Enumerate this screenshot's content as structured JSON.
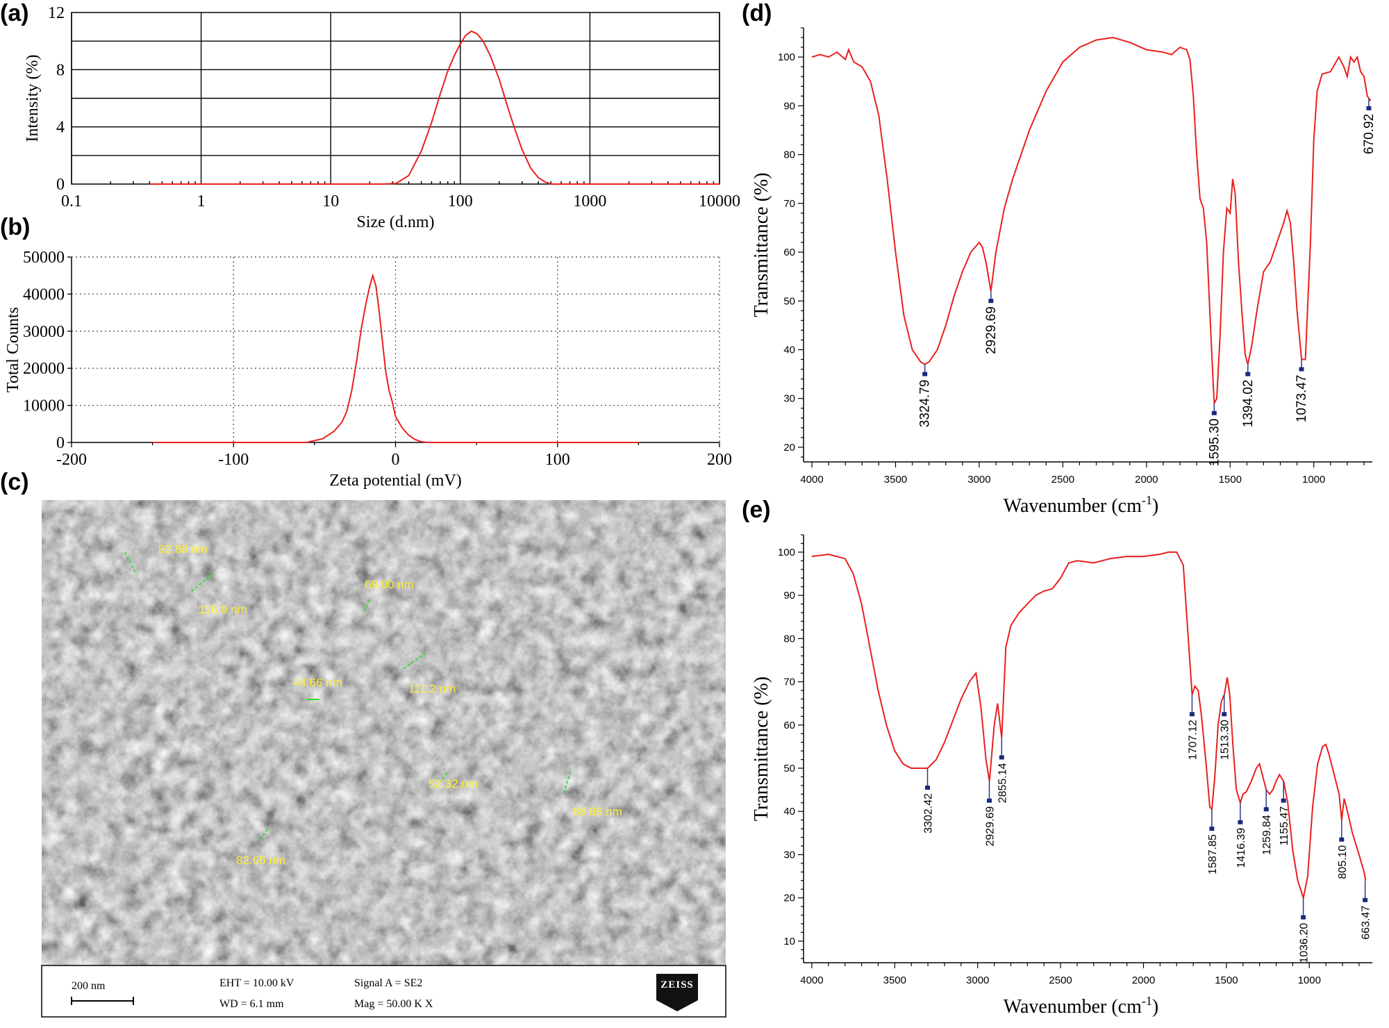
{
  "panels": {
    "a": "(a)",
    "b": "(b)",
    "c": "(c)",
    "d": "(d)",
    "e": "(e)"
  },
  "chart_data": [
    {
      "id": "a",
      "type": "line",
      "xlabel": "Size (d.nm)",
      "ylabel": "Intensity (%)",
      "xscale": "log",
      "xlim": [
        0.1,
        10000
      ],
      "ylim": [
        0,
        12
      ],
      "xticks": [
        0.1,
        1,
        10,
        100,
        1000,
        10000
      ],
      "xtick_labels": [
        "0.1",
        "1",
        "10",
        "100",
        "1000",
        "10000"
      ],
      "yticks": [
        0,
        4,
        8,
        12
      ],
      "ytick_labels": [
        "0",
        "4",
        "8",
        "12"
      ],
      "grid": true,
      "color": "#e8201e",
      "x": [
        0.4,
        10,
        25,
        32,
        40,
        50,
        60,
        70,
        80,
        90,
        100,
        110,
        122,
        135,
        150,
        170,
        200,
        230,
        260,
        300,
        350,
        400,
        450,
        500,
        10000
      ],
      "y": [
        0,
        0,
        0,
        0.05,
        0.6,
        2.3,
        4.3,
        6.3,
        7.9,
        9.0,
        9.8,
        10.4,
        10.7,
        10.5,
        10.0,
        9.0,
        7.3,
        5.5,
        4.0,
        2.4,
        1.1,
        0.45,
        0.15,
        0,
        0
      ]
    },
    {
      "id": "b",
      "type": "line",
      "xlabel": "Zeta potential (mV)",
      "ylabel": "Total Counts",
      "xlim": [
        -200,
        200
      ],
      "ylim": [
        0,
        50000
      ],
      "xticks": [
        -200,
        -100,
        0,
        100,
        200
      ],
      "xtick_labels": [
        "-200",
        "-100",
        "0",
        "100",
        "200"
      ],
      "yticks": [
        0,
        10000,
        20000,
        30000,
        40000,
        50000
      ],
      "ytick_labels": [
        "0",
        "10000",
        "20000",
        "30000",
        "40000",
        "50000"
      ],
      "grid": "dotted",
      "color": "#e8201e",
      "x": [
        -150,
        -55,
        -45,
        -38,
        -33,
        -30,
        -27,
        -24,
        -21,
        -18,
        -16,
        -15,
        -14,
        -12,
        -10,
        -8,
        -6,
        -4,
        -2,
        0,
        4,
        8,
        12,
        16,
        20,
        25,
        150
      ],
      "y": [
        0,
        0,
        1000,
        3000,
        5500,
        8500,
        14000,
        22000,
        31000,
        38000,
        42000,
        43500,
        45000,
        42000,
        35000,
        27000,
        19000,
        14000,
        11000,
        7000,
        4000,
        2000,
        800,
        200,
        0,
        0,
        0
      ]
    },
    {
      "id": "d",
      "type": "line",
      "xlabel": "Wavenumber (cm",
      "xlabel_sup": "-1",
      "xlabel_end": ")",
      "ylabel": "Transmittance (%)",
      "xlim": [
        4050,
        650
      ],
      "ylim": [
        17,
        106
      ],
      "xticks": [
        4000,
        3500,
        3000,
        2500,
        2000,
        1500,
        1000
      ],
      "xtick_labels": [
        "4000",
        "3500",
        "3000",
        "2500",
        "2000",
        "1500",
        "1000"
      ],
      "yticks": [
        20,
        30,
        40,
        50,
        60,
        70,
        80,
        90,
        100
      ],
      "ytick_labels": [
        "20",
        "30",
        "40",
        "50",
        "60",
        "70",
        "80",
        "90",
        "100"
      ],
      "color": "#e8201e",
      "x": [
        4000,
        3950,
        3900,
        3850,
        3800,
        3780,
        3750,
        3700,
        3650,
        3600,
        3550,
        3500,
        3450,
        3400,
        3350,
        3325,
        3300,
        3250,
        3200,
        3150,
        3100,
        3050,
        3000,
        2980,
        2960,
        2930,
        2900,
        2850,
        2800,
        2700,
        2600,
        2500,
        2400,
        2300,
        2200,
        2100,
        2000,
        1900,
        1850,
        1800,
        1760,
        1740,
        1720,
        1700,
        1680,
        1660,
        1640,
        1620,
        1600,
        1595,
        1580,
        1560,
        1540,
        1520,
        1500,
        1485,
        1470,
        1450,
        1430,
        1410,
        1394,
        1370,
        1340,
        1300,
        1260,
        1220,
        1180,
        1160,
        1140,
        1120,
        1100,
        1073,
        1050,
        1020,
        1000,
        980,
        950,
        900,
        850,
        820,
        800,
        780,
        760,
        740,
        720,
        700,
        680,
        660
      ],
      "y": [
        100,
        100.5,
        100,
        101,
        99.5,
        101.5,
        99,
        98,
        95,
        88,
        75,
        60,
        47,
        40,
        37.5,
        37,
        37.5,
        40,
        45,
        51,
        56,
        60,
        62,
        61,
        58,
        52,
        60,
        69,
        75,
        85,
        93,
        99,
        102,
        103.5,
        104,
        103,
        101.5,
        101,
        100.5,
        102,
        101.5,
        99.5,
        92,
        80,
        71,
        69,
        62,
        47,
        32,
        29,
        30,
        43,
        60,
        69,
        68,
        75,
        72,
        58,
        48,
        39,
        37,
        41,
        48,
        56,
        58,
        62,
        66,
        68.5,
        66,
        58,
        48,
        38,
        38,
        62,
        83,
        93,
        96.5,
        97,
        100,
        98,
        96,
        100,
        99,
        100,
        97,
        96,
        92,
        91
      ],
      "peaks": [
        {
          "label": "3324.79",
          "x": 3324.79,
          "y": 37
        },
        {
          "label": "2929.69",
          "x": 2929.69,
          "y": 52
        },
        {
          "label": "1595.30",
          "x": 1595.3,
          "y": 29
        },
        {
          "label": "1394.02",
          "x": 1394.02,
          "y": 37
        },
        {
          "label": "1073.47",
          "x": 1073.47,
          "y": 38
        },
        {
          "label": "670.92",
          "x": 670.92,
          "y": 91.5
        }
      ]
    },
    {
      "id": "e",
      "type": "line",
      "xlabel": "Wavenumber (cm",
      "xlabel_sup": "-1",
      "xlabel_end": ")",
      "ylabel": "Transmittance (%)",
      "xlim": [
        4050,
        620
      ],
      "ylim": [
        5,
        104
      ],
      "xticks": [
        4000,
        3500,
        3000,
        2500,
        2000,
        1500,
        1000
      ],
      "xtick_labels": [
        "4000",
        "3500",
        "3000",
        "2500",
        "2000",
        "1500",
        "1000"
      ],
      "yticks": [
        10,
        20,
        30,
        40,
        50,
        60,
        70,
        80,
        90,
        100
      ],
      "ytick_labels": [
        "10",
        "20",
        "30",
        "40",
        "50",
        "60",
        "70",
        "80",
        "90",
        "100"
      ],
      "color": "#e8201e",
      "x": [
        4000,
        3900,
        3800,
        3750,
        3700,
        3650,
        3600,
        3550,
        3500,
        3450,
        3400,
        3350,
        3302,
        3250,
        3200,
        3150,
        3100,
        3050,
        3010,
        2980,
        2950,
        2929,
        2900,
        2880,
        2855,
        2830,
        2800,
        2750,
        2700,
        2650,
        2600,
        2550,
        2500,
        2450,
        2400,
        2300,
        2200,
        2100,
        2000,
        1900,
        1850,
        1800,
        1760,
        1730,
        1707,
        1690,
        1670,
        1650,
        1620,
        1600,
        1588,
        1570,
        1550,
        1530,
        1513,
        1495,
        1480,
        1460,
        1440,
        1416,
        1400,
        1380,
        1350,
        1320,
        1300,
        1280,
        1260,
        1240,
        1220,
        1200,
        1180,
        1155,
        1130,
        1100,
        1070,
        1036,
        1010,
        980,
        950,
        920,
        900,
        880,
        860,
        840,
        820,
        805,
        790,
        770,
        740,
        700,
        670,
        660
      ],
      "y": [
        99,
        99.5,
        98.5,
        95,
        88,
        78,
        68,
        60,
        54,
        51,
        50,
        50,
        50,
        52,
        56,
        61,
        66,
        70,
        72,
        64,
        52,
        47,
        60,
        65,
        57,
        78,
        83,
        86,
        88,
        90,
        91,
        91.5,
        94,
        97.5,
        98,
        97.5,
        98.5,
        99,
        99,
        99.5,
        100,
        100,
        97,
        80,
        67,
        69,
        68,
        62,
        50,
        41,
        40.5,
        48,
        60,
        65.5,
        67,
        71,
        67,
        55,
        45,
        42,
        44,
        44.5,
        47,
        50,
        51,
        48,
        45,
        44,
        45,
        47,
        48.5,
        47,
        42,
        31,
        24,
        20,
        25,
        41,
        51,
        55,
        55.5,
        53,
        50,
        47,
        44,
        38,
        43,
        40,
        35,
        30,
        26,
        24
      ],
      "peaks": [
        {
          "label": "3302.42",
          "x": 3302.42,
          "y": 50
        },
        {
          "label": "2929.69",
          "x": 2929.69,
          "y": 47
        },
        {
          "label": "2855.14",
          "x": 2855.14,
          "y": 57
        },
        {
          "label": "1707.12",
          "x": 1707.12,
          "y": 67
        },
        {
          "label": "1587.85",
          "x": 1587.85,
          "y": 40.5
        },
        {
          "label": "1513.30",
          "x": 1513.3,
          "y": 67
        },
        {
          "label": "1416.39",
          "x": 1416.39,
          "y": 42
        },
        {
          "label": "1259.84",
          "x": 1259.84,
          "y": 45
        },
        {
          "label": "1155.47",
          "x": 1155.47,
          "y": 47
        },
        {
          "label": "1036.20",
          "x": 1036.2,
          "y": 20
        },
        {
          "label": "805.10",
          "x": 805.1,
          "y": 38
        },
        {
          "label": "663.47",
          "x": 663.47,
          "y": 24
        }
      ]
    }
  ],
  "sem": {
    "measurements": [
      "92.88 nm",
      "116.9 nm",
      "69.00 nm",
      "111.2 nm",
      "44.66 nm",
      "52.32 nm",
      "86.86 nm",
      "82.65 nm"
    ],
    "scale_bar": "200 nm",
    "eht": "EHT = 10.00 kV",
    "wd": "WD = 6.1 mm",
    "signal": "Signal A = SE2",
    "mag": "Mag =   50.00 K X",
    "logo": "ZEISS"
  },
  "colors": {
    "curve": "#e8201e",
    "peak_marker": "#1a2a7a",
    "measure_text": "#ffee33",
    "measure_arrow": "#33dd33"
  }
}
